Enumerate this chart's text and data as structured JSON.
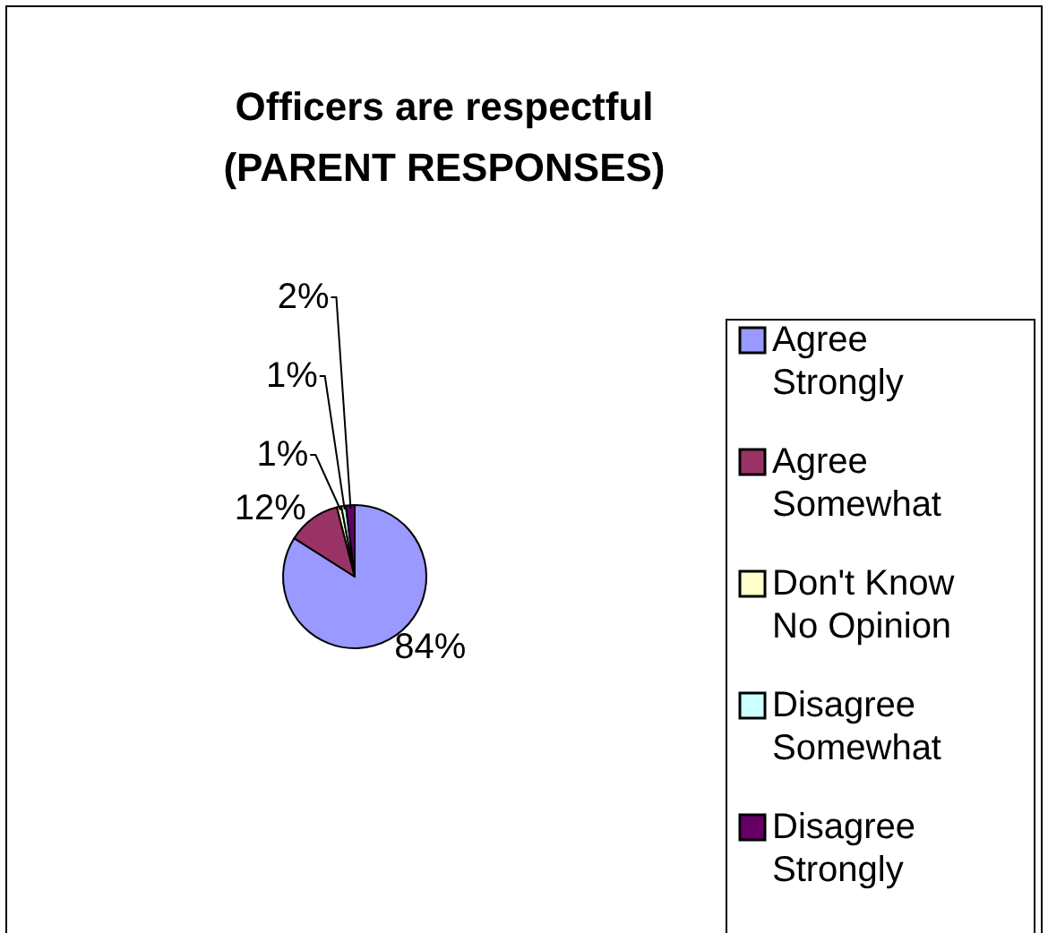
{
  "chart_data": {
    "type": "pie",
    "title": "Officers are respectful\n(PARENT RESPONSES)",
    "categories": [
      "Agree Strongly",
      "Agree Somewhat",
      "Don't Know No Opinion",
      "Disagree Somewhat",
      "Disagree Strongly"
    ],
    "values": [
      84,
      12,
      1,
      1,
      2
    ],
    "colors": [
      "#9999ff",
      "#993366",
      "#ffffcc",
      "#ccffff",
      "#660066"
    ],
    "value_labels": [
      "84%",
      "12%",
      "1%",
      "1%",
      "2%"
    ],
    "legend": "right"
  }
}
